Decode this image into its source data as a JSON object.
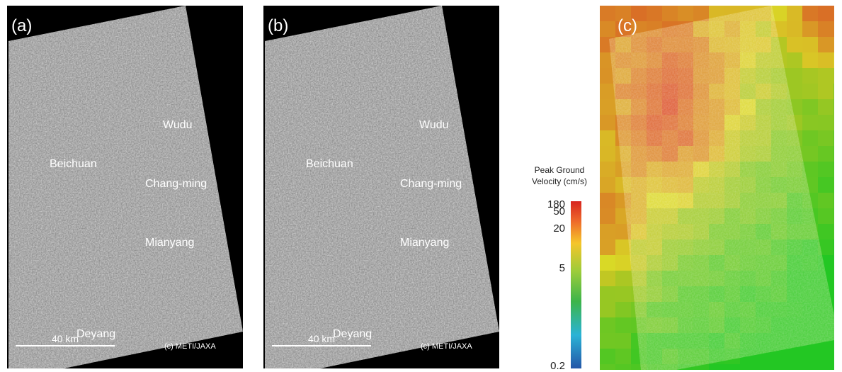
{
  "panels": [
    {
      "label": "(a)",
      "places": [
        "Wudu",
        "Beichuan",
        "Chang-ming",
        "Mianyang",
        "Deyang"
      ],
      "scale_bar": "40 km",
      "credit": "(c) METI/JAXA"
    },
    {
      "label": "(b)",
      "places": [
        "Wudu",
        "Beichuan",
        "Chang-ming",
        "Mianyang",
        "Deyang"
      ],
      "scale_bar": "40 km",
      "credit": "(c) METI/JAXA"
    },
    {
      "label": "(c)"
    }
  ],
  "colorbar": {
    "title": [
      "Peak Ground",
      "Velocity (cm/s)"
    ],
    "ticks": [
      180,
      50,
      20,
      5,
      0.2
    ]
  }
}
